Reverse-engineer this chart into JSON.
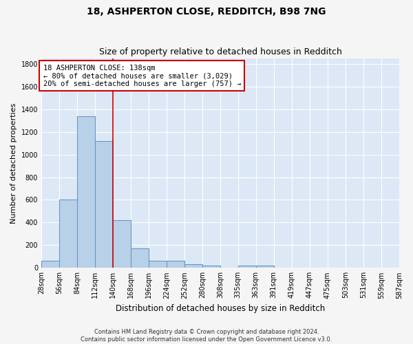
{
  "title": "18, ASHPERTON CLOSE, REDDITCH, B98 7NG",
  "subtitle": "Size of property relative to detached houses in Redditch",
  "xlabel": "Distribution of detached houses by size in Redditch",
  "ylabel": "Number of detached properties",
  "footer_line1": "Contains HM Land Registry data © Crown copyright and database right 2024.",
  "footer_line2": "Contains public sector information licensed under the Open Government Licence v3.0.",
  "bin_edges": [
    28,
    56,
    84,
    112,
    140,
    168,
    196,
    224,
    252,
    280,
    308,
    335,
    363,
    391,
    419,
    447,
    475,
    503,
    531,
    559,
    587
  ],
  "bar_heights": [
    60,
    600,
    1340,
    1120,
    420,
    170,
    60,
    60,
    35,
    20,
    0,
    20,
    20,
    0,
    0,
    0,
    0,
    0,
    0,
    0
  ],
  "bar_color": "#b8d0e8",
  "bar_edge_color": "#6090c0",
  "property_line_x": 140,
  "property_line_color": "#cc0000",
  "annotation_text": "18 ASHPERTON CLOSE: 138sqm\n← 80% of detached houses are smaller (3,029)\n20% of semi-detached houses are larger (757) →",
  "annotation_box_color": "#cc0000",
  "ylim": [
    0,
    1850
  ],
  "yticks": [
    0,
    200,
    400,
    600,
    800,
    1000,
    1200,
    1400,
    1600,
    1800
  ],
  "background_color": "#dce8f5",
  "fig_background_color": "#f5f5f5",
  "grid_color": "#ffffff",
  "title_fontsize": 10,
  "subtitle_fontsize": 9,
  "xlabel_fontsize": 8.5,
  "ylabel_fontsize": 8,
  "tick_fontsize": 7,
  "annotation_fontsize": 7.5,
  "footer_fontsize": 6
}
